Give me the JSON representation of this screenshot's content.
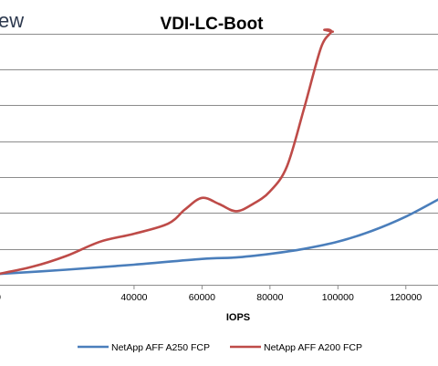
{
  "header": {
    "cut_text": "ew"
  },
  "chart_data": {
    "type": "line",
    "title": "VDI-LC-Boot",
    "xlabel": "IOPS",
    "ylabel": "",
    "xlim": [
      0,
      130000
    ],
    "ylim": [
      0,
      7.5
    ],
    "y_gridlines": [
      1,
      2,
      3,
      4,
      5,
      6,
      7
    ],
    "grid": "horizontal",
    "legend_position": "bottom",
    "x_ticks": [
      {
        "value": 0,
        "label": "0"
      },
      {
        "value": 40000,
        "label": "40000"
      },
      {
        "value": 60000,
        "label": "60000"
      },
      {
        "value": 80000,
        "label": "80000"
      },
      {
        "value": 100000,
        "label": "100000"
      },
      {
        "value": 120000,
        "label": "120000"
      }
    ],
    "series": [
      {
        "name": "NetApp AFF A250 FCP",
        "color": "#4a7ebb",
        "x": [
          0,
          20000,
          40000,
          60000,
          70000,
          80000,
          90000,
          100000,
          110000,
          120000,
          130000
        ],
        "y": [
          0.3,
          0.42,
          0.56,
          0.72,
          0.76,
          0.86,
          1.0,
          1.2,
          1.5,
          1.9,
          2.4
        ]
      },
      {
        "name": "NetApp AFF A200 FCP",
        "color": "#be4b48",
        "x": [
          0,
          10000,
          20000,
          30000,
          40000,
          50000,
          55000,
          60000,
          65000,
          70000,
          75000,
          80000,
          85000,
          90000,
          95000,
          98000,
          96000,
          98500
        ],
        "y": [
          0.3,
          0.5,
          0.8,
          1.2,
          1.42,
          1.7,
          2.1,
          2.42,
          2.25,
          2.05,
          2.25,
          2.6,
          3.3,
          4.9,
          6.6,
          7.05,
          7.1,
          7.05
        ]
      }
    ]
  }
}
